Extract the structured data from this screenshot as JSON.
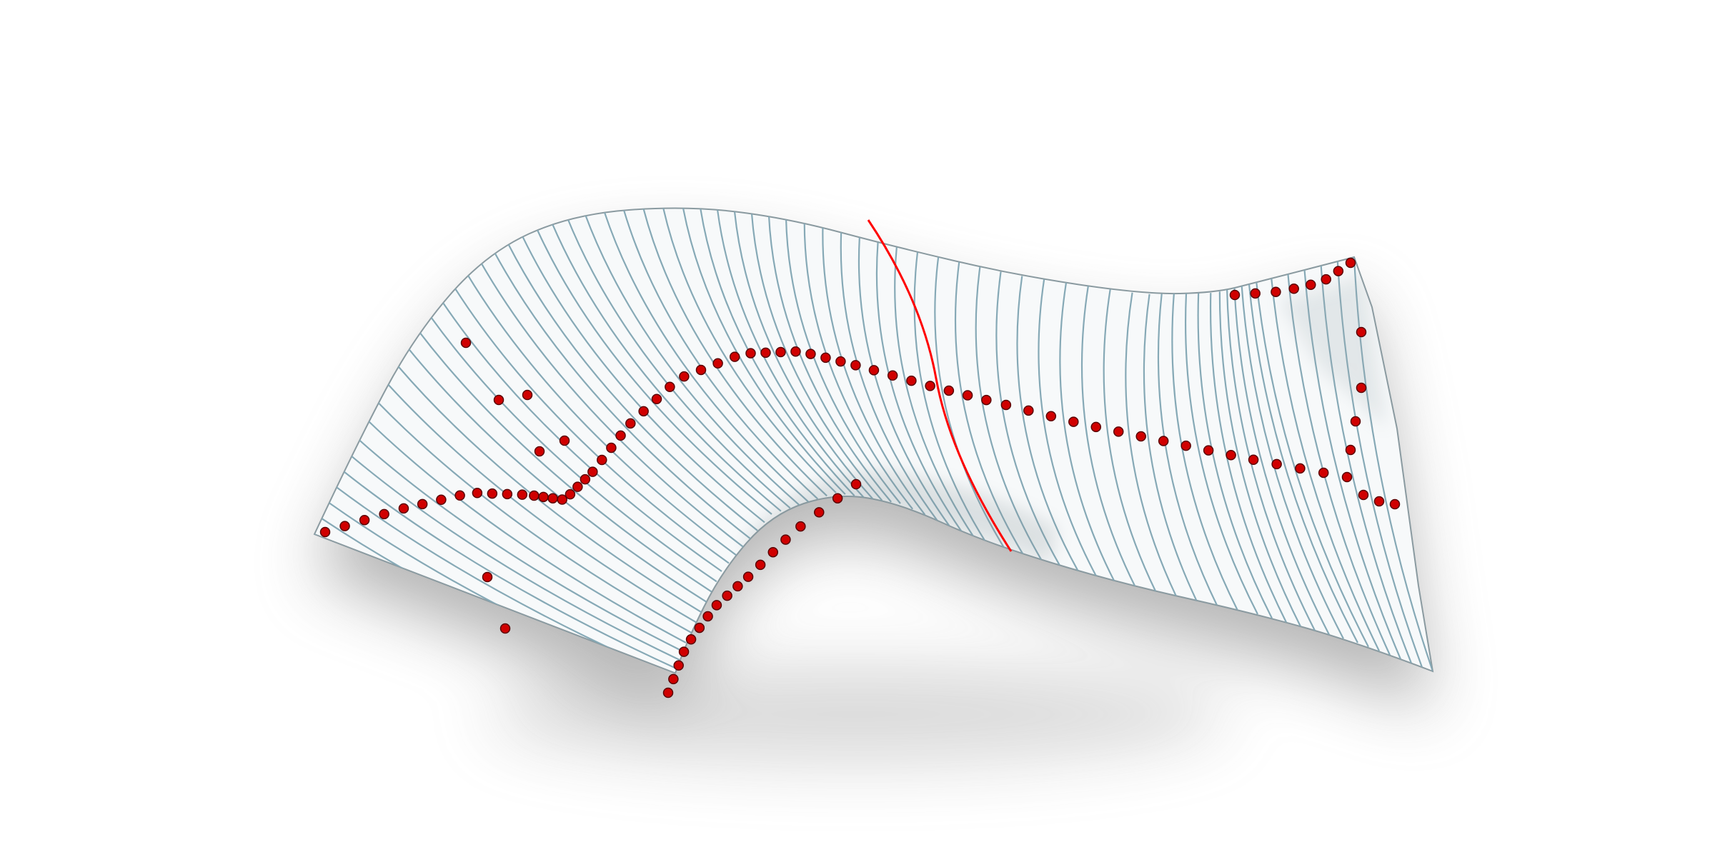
{
  "scene": {
    "background_color": "#ffffff",
    "shadow_color": "#7a7a7a",
    "surface_color": "#f7f9fa",
    "isocurve_color": "#86a9b6",
    "seam_color": "#ff0000",
    "point_color": "#d00000",
    "point_outline_color": "#5a0000",
    "objects": {
      "surface": "swept-surface",
      "isocurves": "u-direction-isocurves",
      "seam": "highlighted-isocurve",
      "points": "control-points"
    }
  }
}
